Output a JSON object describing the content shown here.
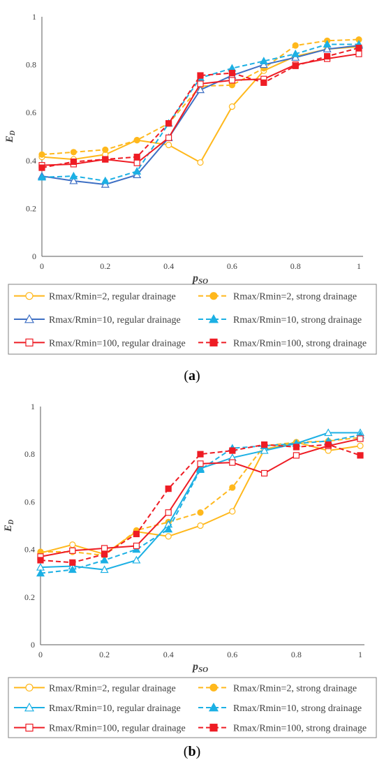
{
  "figure": {
    "panels": [
      {
        "label": "(a)",
        "label_letter": "a",
        "xlabel": "p",
        "xlabel_sub": "SO",
        "ylabel": "E",
        "ylabel_sub": "D"
      },
      {
        "label": "(b)",
        "label_letter": "b",
        "xlabel": "p",
        "xlabel_sub": "SO",
        "ylabel": "E",
        "ylabel_sub": "D"
      }
    ]
  },
  "colors": {
    "orange": "#ffb81c",
    "blue": "#3d6fc4",
    "cyan": "#1cb0e4",
    "red": "#ee1c24"
  },
  "chart_data": [
    {
      "type": "line",
      "panel": "a",
      "xlabel": "pSO",
      "ylabel": "ED",
      "xlim": [
        0,
        1
      ],
      "ylim": [
        0,
        1
      ],
      "xticks": [
        "0",
        "0.2",
        "0.4",
        "0.6",
        "0.8",
        "1"
      ],
      "yticks": [
        "0",
        "0.2",
        "0.4",
        "0.6",
        "0.8",
        "1"
      ],
      "grid": false,
      "legend_position": "below",
      "x": [
        0,
        0.1,
        0.2,
        0.3,
        0.4,
        0.5,
        0.6,
        0.7,
        0.8,
        0.9,
        1.0
      ],
      "series": [
        {
          "name": "Rmax/Rmin=2, regular drainage",
          "color": "#ffb81c",
          "dash": "solid",
          "marker": "circle",
          "filled": false,
          "values": [
            0.415,
            0.405,
            0.425,
            0.485,
            0.465,
            0.392,
            0.625,
            0.775,
            0.835,
            0.865,
            0.875
          ]
        },
        {
          "name": "Rmax/Rmin=2, strong drainage",
          "color": "#ffb81c",
          "dash": "dashed",
          "marker": "circle",
          "filled": true,
          "values": [
            0.425,
            0.435,
            0.445,
            0.485,
            0.555,
            0.71,
            0.715,
            0.785,
            0.88,
            0.9,
            0.905
          ]
        },
        {
          "name": "Rmax/Rmin=10, regular drainage",
          "color": "#3d6fc4",
          "dash": "solid",
          "marker": "triangle",
          "filled": false,
          "values": [
            0.335,
            0.315,
            0.3,
            0.34,
            0.495,
            0.695,
            0.755,
            0.8,
            0.83,
            0.865,
            0.88
          ]
        },
        {
          "name": "Rmax/Rmin=10, strong drainage",
          "color": "#1cb0e4",
          "dash": "dashed",
          "marker": "triangle",
          "filled": true,
          "values": [
            0.33,
            0.335,
            0.315,
            0.355,
            0.555,
            0.745,
            0.785,
            0.815,
            0.845,
            0.885,
            0.885
          ]
        },
        {
          "name": "Rmax/Rmin=100, regular drainage",
          "color": "#ee1c24",
          "dash": "solid",
          "marker": "square",
          "filled": false,
          "values": [
            0.38,
            0.385,
            0.405,
            0.39,
            0.495,
            0.72,
            0.735,
            0.74,
            0.8,
            0.825,
            0.845
          ]
        },
        {
          "name": "Rmax/Rmin=100, strong drainage",
          "color": "#ee1c24",
          "dash": "dashed",
          "marker": "square",
          "filled": true,
          "values": [
            0.37,
            0.395,
            0.405,
            0.415,
            0.555,
            0.755,
            0.765,
            0.725,
            0.795,
            0.835,
            0.87
          ]
        }
      ]
    },
    {
      "type": "line",
      "panel": "b",
      "xlabel": "pSO",
      "ylabel": "ED",
      "xlim": [
        0,
        1
      ],
      "ylim": [
        0,
        1
      ],
      "xticks": [
        "0",
        "0.2",
        "0.4",
        "0.6",
        "0.8",
        "1"
      ],
      "yticks": [
        "0",
        "0.2",
        "0.4",
        "0.6",
        "0.8",
        "1"
      ],
      "grid": false,
      "legend_position": "below",
      "x": [
        0,
        0.1,
        0.2,
        0.3,
        0.4,
        0.5,
        0.6,
        0.7,
        0.8,
        0.9,
        1.0
      ],
      "series": [
        {
          "name": "Rmax/Rmin=2, regular drainage",
          "color": "#ffb81c",
          "dash": "solid",
          "marker": "circle",
          "filled": false,
          "values": [
            0.385,
            0.42,
            0.38,
            0.475,
            0.455,
            0.5,
            0.56,
            0.82,
            0.85,
            0.815,
            0.835
          ]
        },
        {
          "name": "Rmax/Rmin=2, strong drainage",
          "color": "#ffb81c",
          "dash": "dashed",
          "marker": "circle",
          "filled": true,
          "values": [
            0.39,
            0.39,
            0.375,
            0.48,
            0.515,
            0.555,
            0.66,
            0.835,
            0.85,
            0.855,
            0.87
          ]
        },
        {
          "name": "Rmax/Rmin=10, regular drainage",
          "color": "#1cb0e4",
          "dash": "solid",
          "marker": "triangle",
          "filled": false,
          "values": [
            0.325,
            0.33,
            0.315,
            0.355,
            0.505,
            0.74,
            0.785,
            0.815,
            0.845,
            0.89,
            0.89
          ]
        },
        {
          "name": "Rmax/Rmin=10, strong drainage",
          "color": "#1cb0e4",
          "dash": "dashed",
          "marker": "triangle",
          "filled": true,
          "values": [
            0.3,
            0.315,
            0.355,
            0.4,
            0.485,
            0.735,
            0.825,
            0.835,
            0.845,
            0.855,
            0.88
          ]
        },
        {
          "name": "Rmax/Rmin=100, regular drainage",
          "color": "#ee1c24",
          "dash": "solid",
          "marker": "square",
          "filled": false,
          "values": [
            0.37,
            0.395,
            0.405,
            0.415,
            0.555,
            0.76,
            0.765,
            0.72,
            0.795,
            0.835,
            0.865
          ]
        },
        {
          "name": "Rmax/Rmin=100, strong drainage",
          "color": "#ee1c24",
          "dash": "dashed",
          "marker": "square",
          "filled": true,
          "values": [
            0.355,
            0.345,
            0.38,
            0.465,
            0.655,
            0.8,
            0.815,
            0.84,
            0.83,
            0.84,
            0.795
          ]
        }
      ]
    }
  ]
}
